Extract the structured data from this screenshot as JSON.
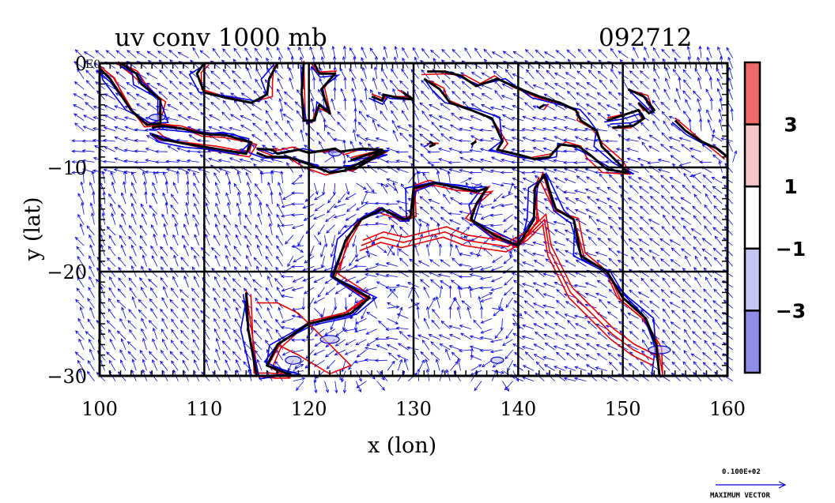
{
  "chart_data": {
    "type": "vector-contour",
    "title": "uv conv 1000 mb",
    "timestamp": "092712",
    "xlabel": "x (lon)",
    "ylabel": "y (lat)",
    "xlim": [
      100,
      160
    ],
    "ylim": [
      -30,
      0
    ],
    "x_ticks": [
      100,
      110,
      120,
      130,
      140,
      150,
      160
    ],
    "y_ticks": [
      0,
      -10,
      -20,
      -30
    ],
    "x_tick_labels": [
      "100",
      "110",
      "120",
      "130",
      "140",
      "150",
      "160"
    ],
    "y_tick_labels": [
      "0",
      "−10",
      "−20",
      "−30"
    ],
    "y_top_label_fragment": "E0",
    "grid": true,
    "vector_color": "#0000e6",
    "contour_colors": {
      "positive": "#e60000",
      "negative": "#0000e6",
      "coast": "#000000"
    },
    "colorbar": {
      "labels": [
        "3",
        "1",
        "−1",
        "−3"
      ],
      "levels": [
        3,
        1,
        -1,
        -3
      ],
      "colors": [
        "#ee6a6a",
        "#f5c4c4",
        "#ffffff",
        "#c6c6f4",
        "#8e8ee8"
      ]
    },
    "reference_vector": {
      "value": "0.100E+02",
      "label": "MAXIMUM VECTOR"
    }
  }
}
